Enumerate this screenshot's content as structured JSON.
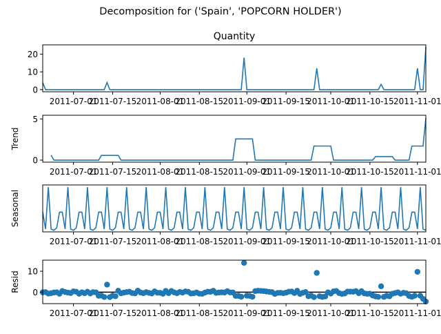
{
  "suptitle": "Decomposition for ('Spain', 'POPCORN HOLDER')",
  "x_tick_labels": [
    "2011-07-01",
    "2011-07-15",
    "2011-08-01",
    "2011-08-15",
    "2011-09-01",
    "2011-09-15",
    "2011-10-01",
    "2011-10-15",
    "2011-11-01"
  ],
  "colors": {
    "series": "#1f77b4",
    "zero_line": "#000000",
    "axes": "#000000"
  },
  "chart_data": [
    {
      "type": "line",
      "title": "Quantity",
      "ylabel": "",
      "x_start": "2011-06-20",
      "x_end": "2011-11-04",
      "ylim": [
        -1.2,
        25.2
      ],
      "yticks": [
        0,
        10,
        20
      ],
      "grid": false,
      "spikes": [
        {
          "x": "2011-06-20",
          "y": 4
        },
        {
          "x": "2011-07-13",
          "y": 4
        },
        {
          "x": "2011-08-31",
          "y": 18
        },
        {
          "x": "2011-09-26",
          "y": 12
        },
        {
          "x": "2011-10-19",
          "y": 3
        },
        {
          "x": "2011-11-01",
          "y": 12
        },
        {
          "x": "2011-11-04",
          "y": 24
        }
      ],
      "baseline": 0
    },
    {
      "type": "line",
      "title": "",
      "ylabel": "Trend",
      "x_start": "2011-06-20",
      "x_end": "2011-11-04",
      "ylim": [
        -0.25,
        5.45
      ],
      "yticks": [
        0,
        5
      ],
      "grid": false,
      "levels": [
        {
          "from": "2011-06-23",
          "to": "2011-06-23",
          "y": 0.6
        },
        {
          "from": "2011-06-24",
          "to": "2011-07-10",
          "y": 0
        },
        {
          "from": "2011-07-11",
          "to": "2011-07-17",
          "y": 0.57
        },
        {
          "from": "2011-07-18",
          "to": "2011-08-27",
          "y": 0
        },
        {
          "from": "2011-08-28",
          "to": "2011-09-03",
          "y": 2.57
        },
        {
          "from": "2011-09-04",
          "to": "2011-09-24",
          "y": 0
        },
        {
          "from": "2011-09-25",
          "to": "2011-10-01",
          "y": 1.71
        },
        {
          "from": "2011-10-02",
          "to": "2011-10-16",
          "y": 0
        },
        {
          "from": "2011-10-17",
          "to": "2011-10-23",
          "y": 0.43
        },
        {
          "from": "2011-10-24",
          "to": "2011-10-29",
          "y": 0
        },
        {
          "from": "2011-10-30",
          "to": "2011-11-03",
          "y": 1.71
        },
        {
          "from": "2011-11-04",
          "to": "2011-11-04",
          "y": 5.1
        }
      ]
    },
    {
      "type": "line",
      "title": "",
      "ylabel": "Seasonal",
      "x_start": "2011-06-20",
      "x_end": "2011-11-04",
      "ylim": [
        -0.35,
        1.15
      ],
      "yticks": [],
      "grid": false,
      "period_days": 7,
      "pattern": [
        0.28,
        -0.26,
        1.08,
        -0.26,
        -0.3,
        -0.22,
        0.28
      ]
    },
    {
      "type": "scatter",
      "title": "",
      "ylabel": "Resid",
      "x_start": "2011-06-20",
      "x_end": "2011-11-04",
      "ylim": [
        -5.5,
        15.3
      ],
      "yticks": [
        0,
        10
      ],
      "grid": false,
      "zero_line": true,
      "outliers": [
        {
          "x": "2011-07-13",
          "y": 3.6
        },
        {
          "x": "2011-08-31",
          "y": 14
        },
        {
          "x": "2011-09-26",
          "y": 9.2
        },
        {
          "x": "2011-10-19",
          "y": 2.8
        },
        {
          "x": "2011-11-01",
          "y": 9.7
        },
        {
          "x": "2011-11-03",
          "y": -3.2
        },
        {
          "x": "2011-11-04",
          "y": -4.5
        }
      ]
    }
  ]
}
